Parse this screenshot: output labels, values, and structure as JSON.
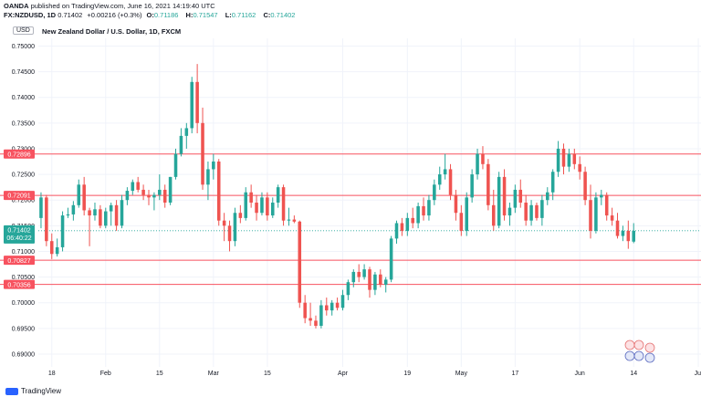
{
  "header": {
    "line1_user": "OANDA",
    "line1_rest": "published on TradingView.com, June 16, 2021 14:19:40 UTC",
    "symbol": "FX:NZDUSD, 1D",
    "last": "0.71402",
    "change": "+0.00216 (+0.3%)",
    "o_label": "O:",
    "o_val": "0.71186",
    "h_label": "H:",
    "h_val": "0.71547",
    "l_label": "L:",
    "l_val": "0.71162",
    "c_label": "C:",
    "c_val": "0.71402"
  },
  "chart_title": "New Zealand Dollar / U.S. Dollar, 1D, FXCM",
  "currency_label": "USD",
  "footer": {
    "brand": "TradingView"
  },
  "colors": {
    "up": "#26a69a",
    "down": "#ef5350",
    "level": "#f7525f",
    "last": "#26a69a",
    "grid": "#f0f3fa"
  },
  "chart_data": {
    "type": "candlestick",
    "title": "New Zealand Dollar / U.S. Dollar, 1D, FXCM",
    "ylim": [
      0.6875,
      0.7515
    ],
    "y_ticks": [
      "0.75000",
      "0.74500",
      "0.74000",
      "0.73500",
      "0.73000",
      "0.72500",
      "0.72000",
      "0.71500",
      "0.71000",
      "0.70500",
      "0.70000",
      "0.69500",
      "0.69000"
    ],
    "x_ticks": [
      {
        "label": "18",
        "index": 2
      },
      {
        "label": "Feb",
        "index": 12
      },
      {
        "label": "15",
        "index": 22
      },
      {
        "label": "Mar",
        "index": 32
      },
      {
        "label": "15",
        "index": 42
      },
      {
        "label": "Apr",
        "index": 56
      },
      {
        "label": "19",
        "index": 68
      },
      {
        "label": "May",
        "index": 78
      },
      {
        "label": "17",
        "index": 88
      },
      {
        "label": "Jun",
        "index": 100
      },
      {
        "label": "14",
        "index": 110
      },
      {
        "label": "Jul",
        "index": 122
      }
    ],
    "x_count": 123,
    "levels": [
      "0.72896",
      "0.72091",
      "0.70827",
      "0.70356"
    ],
    "last_price": "0.71402",
    "countdown": "06:40:22",
    "candles": [
      [
        0.7165,
        0.7215,
        0.7145,
        0.7205
      ],
      [
        0.7205,
        0.721,
        0.711,
        0.712
      ],
      [
        0.712,
        0.7135,
        0.7085,
        0.7095
      ],
      [
        0.7095,
        0.7125,
        0.709,
        0.7108
      ],
      [
        0.7108,
        0.7178,
        0.71,
        0.717
      ],
      [
        0.717,
        0.7185,
        0.7165,
        0.7172
      ],
      [
        0.7172,
        0.7198,
        0.716,
        0.719
      ],
      [
        0.719,
        0.724,
        0.7185,
        0.723
      ],
      [
        0.723,
        0.7245,
        0.717,
        0.718
      ],
      [
        0.718,
        0.7185,
        0.711,
        0.717
      ],
      [
        0.717,
        0.7195,
        0.716,
        0.7182
      ],
      [
        0.7182,
        0.719,
        0.7145,
        0.715
      ],
      [
        0.715,
        0.7185,
        0.7145,
        0.7178
      ],
      [
        0.7178,
        0.7195,
        0.715,
        0.719
      ],
      [
        0.719,
        0.72,
        0.714,
        0.715
      ],
      [
        0.715,
        0.721,
        0.7145,
        0.72
      ],
      [
        0.72,
        0.7225,
        0.719,
        0.7218
      ],
      [
        0.7218,
        0.724,
        0.721,
        0.7235
      ],
      [
        0.7235,
        0.7245,
        0.7215,
        0.722
      ],
      [
        0.722,
        0.723,
        0.72,
        0.721
      ],
      [
        0.721,
        0.722,
        0.719,
        0.7205
      ],
      [
        0.7205,
        0.7215,
        0.718,
        0.721
      ],
      [
        0.721,
        0.725,
        0.72,
        0.722
      ],
      [
        0.722,
        0.723,
        0.7185,
        0.7195
      ],
      [
        0.7195,
        0.7245,
        0.719,
        0.7245
      ],
      [
        0.7245,
        0.73,
        0.724,
        0.729
      ],
      [
        0.729,
        0.734,
        0.7285,
        0.7325
      ],
      [
        0.7325,
        0.735,
        0.73,
        0.734
      ],
      [
        0.734,
        0.744,
        0.733,
        0.743
      ],
      [
        0.743,
        0.7465,
        0.733,
        0.735
      ],
      [
        0.735,
        0.738,
        0.722,
        0.723
      ],
      [
        0.723,
        0.7275,
        0.72,
        0.726
      ],
      [
        0.726,
        0.729,
        0.724,
        0.7275
      ],
      [
        0.7275,
        0.728,
        0.715,
        0.716
      ],
      [
        0.716,
        0.7175,
        0.712,
        0.715
      ],
      [
        0.715,
        0.716,
        0.71,
        0.712
      ],
      [
        0.712,
        0.7185,
        0.711,
        0.7175
      ],
      [
        0.7175,
        0.719,
        0.7155,
        0.7165
      ],
      [
        0.7165,
        0.7225,
        0.716,
        0.7215
      ],
      [
        0.7215,
        0.723,
        0.7185,
        0.7195
      ],
      [
        0.7195,
        0.721,
        0.716,
        0.7175
      ],
      [
        0.7175,
        0.7215,
        0.717,
        0.7205
      ],
      [
        0.7205,
        0.7215,
        0.716,
        0.717
      ],
      [
        0.717,
        0.7205,
        0.7165,
        0.7195
      ],
      [
        0.7195,
        0.723,
        0.7185,
        0.7225
      ],
      [
        0.7225,
        0.723,
        0.715,
        0.716
      ],
      [
        0.716,
        0.7185,
        0.715,
        0.7162
      ],
      [
        0.7162,
        0.717,
        0.7155,
        0.7158
      ],
      [
        0.7158,
        0.716,
        0.699,
        0.7
      ],
      [
        0.7,
        0.7015,
        0.696,
        0.697
      ],
      [
        0.697,
        0.7,
        0.6955,
        0.6965
      ],
      [
        0.6965,
        0.6975,
        0.695,
        0.6955
      ],
      [
        0.6955,
        0.7005,
        0.695,
        0.6995
      ],
      [
        0.6995,
        0.701,
        0.6975,
        0.6985
      ],
      [
        0.6985,
        0.7005,
        0.6975,
        0.7
      ],
      [
        0.7,
        0.701,
        0.6985,
        0.699
      ],
      [
        0.699,
        0.7025,
        0.6985,
        0.7015
      ],
      [
        0.7015,
        0.7045,
        0.7005,
        0.704
      ],
      [
        0.704,
        0.7065,
        0.703,
        0.706
      ],
      [
        0.706,
        0.7075,
        0.704,
        0.705
      ],
      [
        0.705,
        0.7075,
        0.7045,
        0.7065
      ],
      [
        0.7065,
        0.707,
        0.701,
        0.7025
      ],
      [
        0.7025,
        0.706,
        0.7015,
        0.7055
      ],
      [
        0.7055,
        0.7065,
        0.703,
        0.7035
      ],
      [
        0.7035,
        0.705,
        0.702,
        0.7045
      ],
      [
        0.7045,
        0.713,
        0.704,
        0.7125
      ],
      [
        0.7125,
        0.716,
        0.7115,
        0.7155
      ],
      [
        0.7155,
        0.7165,
        0.713,
        0.714
      ],
      [
        0.714,
        0.7175,
        0.713,
        0.7165
      ],
      [
        0.7165,
        0.7185,
        0.7145,
        0.7155
      ],
      [
        0.7155,
        0.7195,
        0.7145,
        0.7188
      ],
      [
        0.7188,
        0.7205,
        0.716,
        0.717
      ],
      [
        0.717,
        0.721,
        0.716,
        0.72
      ],
      [
        0.72,
        0.724,
        0.719,
        0.723
      ],
      [
        0.723,
        0.7265,
        0.722,
        0.725
      ],
      [
        0.725,
        0.729,
        0.724,
        0.726
      ],
      [
        0.726,
        0.727,
        0.72,
        0.721
      ],
      [
        0.721,
        0.722,
        0.716,
        0.7175
      ],
      [
        0.7175,
        0.719,
        0.713,
        0.714
      ],
      [
        0.714,
        0.7215,
        0.713,
        0.7205
      ],
      [
        0.7205,
        0.726,
        0.7195,
        0.725
      ],
      [
        0.725,
        0.73,
        0.724,
        0.729
      ],
      [
        0.729,
        0.7305,
        0.726,
        0.727
      ],
      [
        0.727,
        0.728,
        0.718,
        0.719
      ],
      [
        0.719,
        0.722,
        0.714,
        0.715
      ],
      [
        0.715,
        0.7255,
        0.7145,
        0.7245
      ],
      [
        0.7245,
        0.726,
        0.716,
        0.717
      ],
      [
        0.717,
        0.7195,
        0.715,
        0.7185
      ],
      [
        0.7185,
        0.723,
        0.7175,
        0.722
      ],
      [
        0.722,
        0.724,
        0.7185,
        0.7195
      ],
      [
        0.7195,
        0.721,
        0.715,
        0.716
      ],
      [
        0.716,
        0.72,
        0.715,
        0.719
      ],
      [
        0.719,
        0.7195,
        0.716,
        0.7165
      ],
      [
        0.7165,
        0.721,
        0.715,
        0.72
      ],
      [
        0.72,
        0.7225,
        0.719,
        0.7215
      ],
      [
        0.7215,
        0.726,
        0.72,
        0.7255
      ],
      [
        0.7255,
        0.7315,
        0.7245,
        0.73
      ],
      [
        0.73,
        0.731,
        0.725,
        0.7265
      ],
      [
        0.7265,
        0.73,
        0.7255,
        0.729
      ],
      [
        0.729,
        0.73,
        0.726,
        0.727
      ],
      [
        0.727,
        0.7285,
        0.724,
        0.7255
      ],
      [
        0.7255,
        0.7265,
        0.719,
        0.72
      ],
      [
        0.72,
        0.723,
        0.7125,
        0.714
      ],
      [
        0.714,
        0.7215,
        0.7135,
        0.7205
      ],
      [
        0.7205,
        0.722,
        0.719,
        0.721
      ],
      [
        0.721,
        0.7215,
        0.716,
        0.717
      ],
      [
        0.717,
        0.7185,
        0.715,
        0.716
      ],
      [
        0.716,
        0.7175,
        0.7125,
        0.713
      ],
      [
        0.713,
        0.715,
        0.712,
        0.714
      ],
      [
        0.714,
        0.716,
        0.7105,
        0.712
      ],
      [
        0.7119,
        0.7155,
        0.7116,
        0.714
      ]
    ]
  }
}
